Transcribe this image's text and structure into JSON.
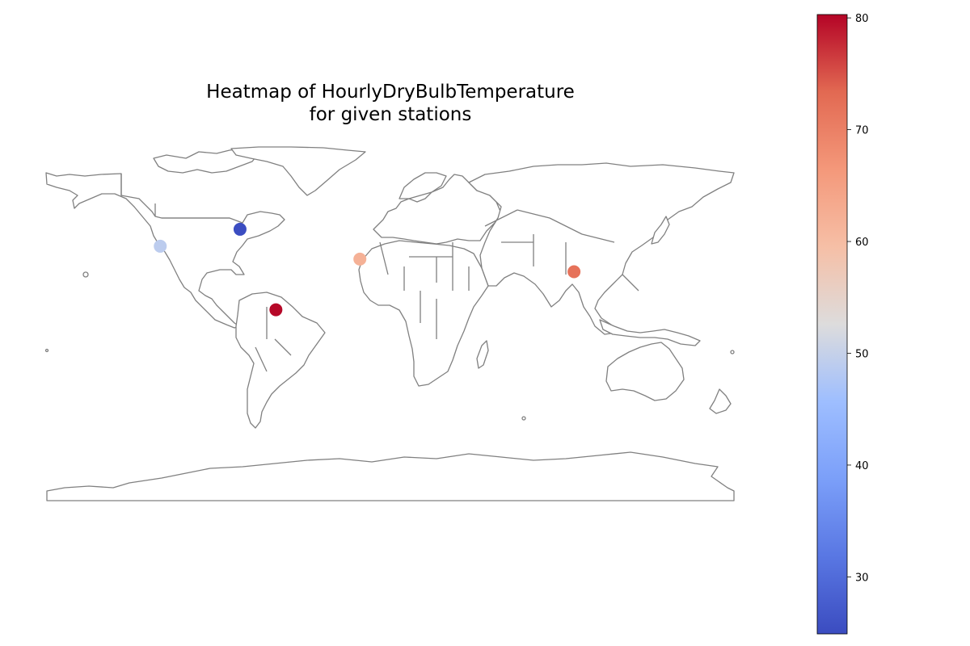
{
  "title_line1": "Heatmap of HourlyDryBulbTemperature",
  "title_line2": "for given stations",
  "colorbar": {
    "colormap": "coolwarm",
    "min": 24.9,
    "max": 80.3,
    "ticks": [
      30,
      40,
      50,
      60,
      70,
      80
    ],
    "tick_labels": [
      "30",
      "40",
      "50",
      "60",
      "70",
      "80"
    ]
  },
  "map": {
    "projection": "plate-carree",
    "land_fill": "#ffffff",
    "border_color": "#808080",
    "lon_range": [
      -180,
      180
    ],
    "lat_range": [
      -90,
      84
    ]
  },
  "chart_data": {
    "type": "scatter",
    "xlabel": "",
    "ylabel": "",
    "color_value_range": [
      24.9,
      80.3
    ],
    "points": [
      {
        "lon": -78.8,
        "lat": 42.9,
        "value": 25
      },
      {
        "lon": -120.6,
        "lat": 34.6,
        "value": 49
      },
      {
        "lon": -16.0,
        "lat": 28.3,
        "value": 62
      },
      {
        "lon": 96.2,
        "lat": 22.1,
        "value": 72
      },
      {
        "lon": -60.0,
        "lat": 3.5,
        "value": 80
      }
    ]
  }
}
